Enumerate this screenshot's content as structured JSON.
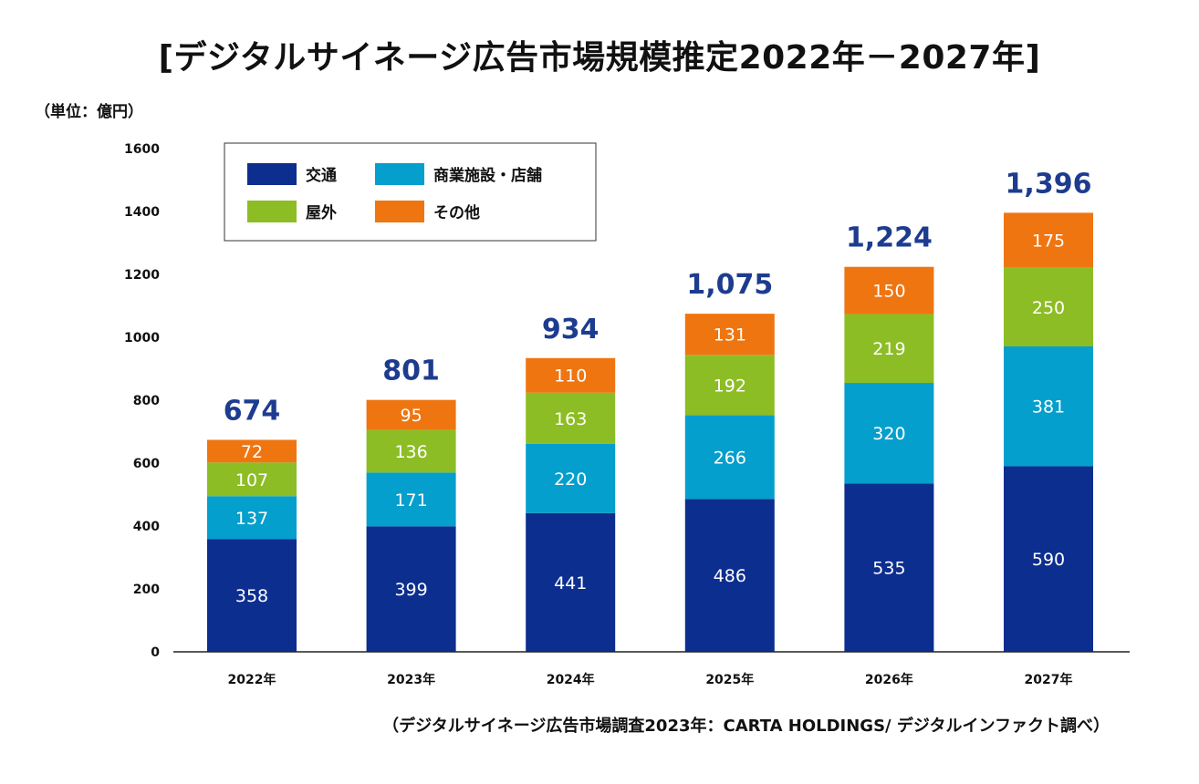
{
  "chart_data": {
    "type": "bar",
    "stacked": true,
    "title": "[デジタルサイネージ広告市場規模推定2022年－2027年]",
    "unit_label": "（単位：億円）",
    "source_note": "（デジタルサイネージ広告市場調査2023年：CARTA HOLDINGS/ デジタルインファクト調べ）",
    "categories": [
      "2022年",
      "2023年",
      "2024年",
      "2025年",
      "2026年",
      "2027年"
    ],
    "series": [
      {
        "name": "交通",
        "color": "#0c2e8f",
        "values": [
          358,
          399,
          441,
          486,
          535,
          590
        ]
      },
      {
        "name": "商業施設・店舗",
        "color": "#049fcc",
        "values": [
          137,
          171,
          220,
          266,
          320,
          381
        ]
      },
      {
        "name": "屋外",
        "color": "#8dbd24",
        "values": [
          107,
          136,
          163,
          192,
          219,
          250
        ]
      },
      {
        "name": "その他",
        "color": "#ef7511",
        "values": [
          72,
          95,
          110,
          131,
          150,
          175
        ]
      }
    ],
    "totals": [
      "674",
      "801",
      "934",
      "1,075",
      "1,224",
      "1,396"
    ],
    "total_color": "#1d3c8f",
    "ylim": [
      0,
      1600
    ],
    "yticks": [
      "0",
      "200",
      "400",
      "600",
      "800",
      "1000",
      "1200",
      "1400",
      "1600"
    ],
    "grid": false,
    "legend_position": "top-left"
  }
}
